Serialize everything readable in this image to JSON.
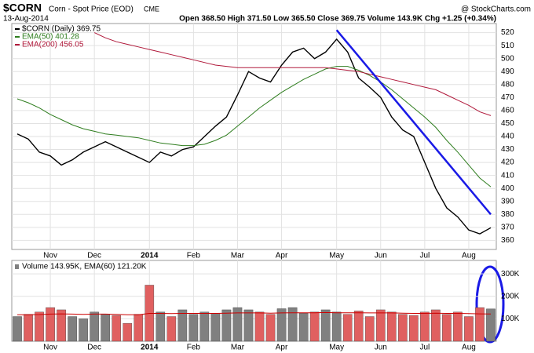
{
  "chart_data": {
    "type": "line",
    "title": "$CORN",
    "subtitle": "Corn - Spot Price (EOD)",
    "exchange": "CME",
    "source": "@ StockCharts.com",
    "date": "13-Aug-2014",
    "quote": "Open 368.50  High 371.50  Low 365.50  Close 369.75  Volume 143.9K  Chg +1.25 (+0.34%)",
    "categories": [
      null,
      null,
      null,
      "Nov",
      null,
      null,
      null,
      "Dec",
      null,
      null,
      null,
      null,
      "2014",
      null,
      null,
      null,
      "Feb",
      null,
      null,
      null,
      "Mar",
      null,
      null,
      null,
      "Apr",
      null,
      null,
      null,
      null,
      "May",
      null,
      null,
      null,
      "Jun",
      null,
      null,
      null,
      "Jul",
      null,
      null,
      null,
      "Aug",
      null,
      null
    ],
    "series": [
      {
        "name": "$CORN (Daily) 369.75",
        "color": "#000000",
        "values": [
          442,
          438,
          428,
          425,
          418,
          422,
          428,
          432,
          436,
          432,
          428,
          424,
          420,
          428,
          425,
          430,
          432,
          440,
          448,
          455,
          472,
          490,
          485,
          482,
          495,
          505,
          508,
          500,
          505,
          515,
          505,
          485,
          478,
          470,
          455,
          445,
          440,
          420,
          400,
          385,
          378,
          368,
          365,
          369.75
        ]
      },
      {
        "name": "EMA(50) 401.28",
        "color": "#2e7d1e",
        "values": [
          469,
          466,
          462,
          457,
          453,
          449,
          446,
          444,
          442,
          441,
          440,
          439,
          437,
          435,
          434,
          433,
          433,
          434,
          437,
          441,
          448,
          455,
          462,
          468,
          474,
          479,
          484,
          488,
          492,
          494,
          494,
          491,
          487,
          482,
          476,
          469,
          462,
          455,
          447,
          437,
          428,
          418,
          408,
          401.28
        ]
      },
      {
        "name": "EMA(200) 456.05",
        "color": "#b0183a",
        "values": [
          null,
          null,
          null,
          null,
          null,
          null,
          null,
          520,
          516,
          513,
          511,
          509,
          507,
          505,
          503,
          501,
          499,
          497,
          495,
          494,
          493,
          493,
          493,
          493,
          493,
          493,
          493,
          493,
          493,
          492,
          491,
          490,
          488,
          486,
          484,
          482,
          480,
          478,
          476,
          472,
          468,
          464,
          459,
          456.05
        ]
      }
    ],
    "ylim": [
      353,
      527
    ],
    "yticks": [
      360,
      370,
      380,
      390,
      400,
      410,
      420,
      430,
      440,
      450,
      460,
      470,
      480,
      490,
      500,
      510,
      520
    ],
    "grid": true,
    "trendline": {
      "color": "#1a1ae6",
      "x": [
        29,
        43
      ],
      "values": [
        522,
        380
      ]
    },
    "volume": {
      "name": "Volume 143.95K, EMA(60) 121.20K",
      "up_color": "#808080",
      "down_color": "#e06060",
      "ema_color": "#cc0000",
      "values": [
        110000,
        120000,
        130000,
        150000,
        140000,
        110000,
        100000,
        130000,
        120000,
        115000,
        80000,
        120000,
        250000,
        130000,
        110000,
        140000,
        120000,
        130000,
        125000,
        140000,
        150000,
        140000,
        130000,
        120000,
        145000,
        150000,
        125000,
        130000,
        140000,
        130000,
        120000,
        135000,
        110000,
        140000,
        130000,
        120000,
        115000,
        130000,
        140000,
        120000,
        130000,
        110000,
        150000,
        143950
      ],
      "ema": [
        118000,
        118000,
        119000,
        121000,
        122000,
        121000,
        120000,
        121000,
        121000,
        120000,
        118000,
        118000,
        124000,
        124000,
        123000,
        124000,
        124000,
        124000,
        124000,
        125000,
        126000,
        126000,
        126000,
        125000,
        126000,
        127000,
        127000,
        127000,
        128000,
        127000,
        127000,
        127000,
        126000,
        126000,
        126000,
        125000,
        124000,
        124000,
        125000,
        124000,
        124000,
        123000,
        122000,
        121200
      ],
      "ylim": [
        0,
        360000
      ],
      "yticks": [
        {
          "value": 100000,
          "label": "100K"
        },
        {
          "value": 200000,
          "label": "200K"
        },
        {
          "value": 300000,
          "label": "300K"
        }
      ]
    }
  }
}
